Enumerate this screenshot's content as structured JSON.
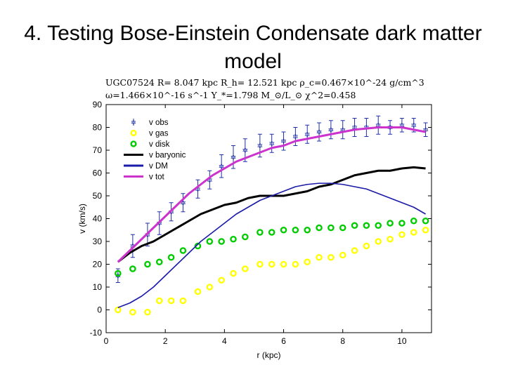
{
  "slide": {
    "title": "4. Testing Bose-Einstein Condensate dark matter model"
  },
  "params": {
    "line1": "UGC07524   R= 8.047 kpc     R_h= 12.521 kpc     ρ_c=0.467×10^-24 g/cm^3",
    "line2": "ω=1.466×10^-16 s^-1     Υ_*=1.798 M_⊙/L_⊙     χ^2=0.458"
  },
  "chart_data": {
    "type": "line",
    "xlabel": "r (kpc)",
    "ylabel": "v (km/s)",
    "xlim": [
      0,
      11
    ],
    "ylim": [
      -10,
      90
    ],
    "xticks": [
      0,
      2,
      4,
      6,
      8,
      10
    ],
    "yticks": [
      -10,
      0,
      10,
      20,
      30,
      40,
      50,
      60,
      70,
      80,
      90
    ],
    "legend_position": "top-left",
    "series": [
      {
        "name": "v obs",
        "kind": "errorbar",
        "color": "#1f2fa8",
        "x": [
          0.4,
          0.9,
          1.4,
          1.8,
          2.2,
          2.6,
          3.1,
          3.5,
          3.9,
          4.3,
          4.7,
          5.2,
          5.6,
          6.0,
          6.4,
          6.8,
          7.2,
          7.6,
          8.0,
          8.4,
          8.8,
          9.2,
          9.6,
          10.0,
          10.4,
          10.8
        ],
        "y": [
          15,
          28,
          33,
          38,
          43,
          47,
          53,
          57,
          63,
          67,
          70,
          72,
          73,
          74,
          76,
          77,
          78,
          79,
          79,
          80,
          80,
          81,
          80,
          81,
          81,
          79
        ],
        "err": [
          3,
          5,
          5,
          5,
          4,
          4,
          4,
          4,
          5,
          5,
          5,
          5,
          4,
          4,
          4,
          4,
          4,
          4,
          4,
          4,
          4,
          4,
          3,
          3,
          3,
          3
        ]
      },
      {
        "name": "v gas",
        "kind": "markers",
        "color": "#ffff00",
        "edge": "#d4d400",
        "x": [
          0.4,
          0.9,
          1.4,
          1.8,
          2.2,
          2.6,
          3.1,
          3.5,
          3.9,
          4.3,
          4.7,
          5.2,
          5.6,
          6.0,
          6.4,
          6.8,
          7.2,
          7.6,
          8.0,
          8.4,
          8.8,
          9.2,
          9.6,
          10.0,
          10.4,
          10.8
        ],
        "y": [
          0,
          -1,
          -1,
          4,
          4,
          4,
          8,
          10,
          13,
          16,
          18,
          20,
          20,
          20,
          20,
          21,
          23,
          23,
          24,
          26,
          28,
          30,
          31,
          33,
          34,
          35
        ]
      },
      {
        "name": "v disk",
        "kind": "markers",
        "color": "#00cc00",
        "edge": "#00a000",
        "x": [
          0.4,
          0.9,
          1.4,
          1.8,
          2.2,
          2.6,
          3.1,
          3.5,
          3.9,
          4.3,
          4.7,
          5.2,
          5.6,
          6.0,
          6.4,
          6.8,
          7.2,
          7.6,
          8.0,
          8.4,
          8.8,
          9.2,
          9.6,
          10.0,
          10.4,
          10.8
        ],
        "y": [
          16,
          18,
          20,
          21,
          23,
          26,
          28,
          30,
          30,
          31,
          32,
          34,
          34,
          35,
          35,
          35,
          36,
          36,
          36,
          37,
          37,
          37,
          38,
          38,
          39,
          39
        ]
      },
      {
        "name": "v baryonic",
        "kind": "line",
        "color": "#000000",
        "x": [
          0.4,
          0.8,
          1.2,
          1.6,
          2.0,
          2.4,
          2.8,
          3.2,
          3.6,
          4.0,
          4.4,
          4.8,
          5.2,
          5.6,
          6.0,
          6.4,
          6.8,
          7.2,
          7.6,
          8.0,
          8.4,
          8.8,
          9.2,
          9.6,
          10.0,
          10.4,
          10.8
        ],
        "y": [
          21,
          25,
          28,
          30,
          33,
          36,
          39,
          42,
          44,
          46,
          47,
          49,
          50,
          50,
          50,
          51,
          52,
          54,
          55,
          57,
          59,
          60,
          61,
          61,
          62,
          62.5,
          62
        ]
      },
      {
        "name": "v DM",
        "kind": "line",
        "color": "#1a1aa8",
        "x": [
          0.4,
          0.8,
          1.2,
          1.6,
          2.0,
          2.4,
          2.8,
          3.2,
          3.6,
          4.0,
          4.4,
          4.8,
          5.2,
          5.6,
          6.0,
          6.4,
          6.8,
          7.2,
          7.6,
          8.0,
          8.4,
          8.8,
          9.2,
          9.6,
          10.0,
          10.4,
          10.8
        ],
        "y": [
          1,
          3,
          6,
          10,
          15,
          20,
          25,
          30,
          34,
          38,
          42,
          45,
          48,
          50,
          52,
          54,
          55,
          55.5,
          55.5,
          55,
          54,
          53,
          51,
          49,
          47,
          45,
          42
        ]
      },
      {
        "name": "v tot",
        "kind": "line",
        "color": "#cc33cc",
        "x": [
          0.4,
          0.8,
          1.2,
          1.6,
          2.0,
          2.4,
          2.8,
          3.2,
          3.6,
          4.0,
          4.4,
          4.8,
          5.2,
          5.6,
          6.0,
          6.4,
          6.8,
          7.2,
          7.6,
          8.0,
          8.4,
          8.8,
          9.2,
          9.6,
          10.0,
          10.4,
          10.8
        ],
        "y": [
          21,
          26,
          31,
          36,
          41,
          46,
          51,
          55,
          59,
          62,
          65,
          67,
          69,
          71,
          72,
          74,
          75,
          76,
          77,
          78,
          79,
          79.5,
          80,
          80,
          80,
          79,
          78
        ]
      }
    ]
  }
}
